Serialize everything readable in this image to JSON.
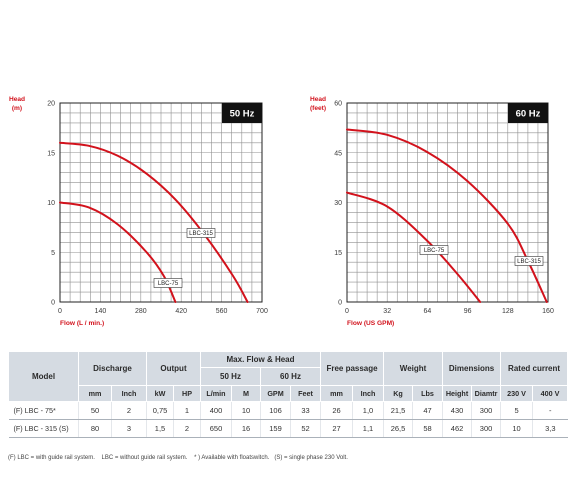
{
  "colors": {
    "curve": "#d2121c",
    "axis_title": "#d2121c",
    "badge_bg": "#111111",
    "header_bg": "#d5dbe2"
  },
  "chart_data": [
    {
      "type": "line",
      "badge": "50 Hz",
      "xlabel": "Flow (L / min.)",
      "ylabel": [
        "Head",
        "(m)"
      ],
      "xlim": [
        0,
        700
      ],
      "ylim": [
        0,
        20
      ],
      "xticks": [
        0,
        140,
        280,
        420,
        560,
        700
      ],
      "yticks": [
        0,
        5,
        10,
        15,
        20
      ],
      "grid": true,
      "xgrid_step": 35,
      "ygrid_step": 1,
      "series": [
        {
          "name": "LBC-315",
          "x": [
            0,
            100,
            200,
            300,
            400,
            500,
            600,
            650
          ],
          "y": [
            16,
            15.7,
            14.7,
            12.9,
            10.3,
            6.8,
            2.6,
            0
          ]
        },
        {
          "name": "LBC-75",
          "x": [
            0,
            100,
            200,
            300,
            360,
            400
          ],
          "y": [
            10,
            9.5,
            7.8,
            5.0,
            2.6,
            0
          ]
        }
      ]
    },
    {
      "type": "line",
      "badge": "60 Hz",
      "xlabel": "Flow (US GPM)",
      "ylabel": [
        "Head",
        "(feet)"
      ],
      "xlim": [
        0,
        160
      ],
      "ylim": [
        0,
        60
      ],
      "xticks": [
        0,
        32,
        64,
        96,
        128,
        160
      ],
      "yticks": [
        0,
        15,
        30,
        45,
        60
      ],
      "grid": true,
      "xgrid_step": 8,
      "ygrid_step": 3,
      "series": [
        {
          "name": "LBC-315",
          "x": [
            0,
            32,
            64,
            96,
            128,
            144,
            159
          ],
          "y": [
            52,
            50.4,
            45.2,
            36.4,
            23.6,
            12.4,
            0
          ]
        },
        {
          "name": "LBC-75",
          "x": [
            0,
            32,
            64,
            88,
            106
          ],
          "y": [
            33,
            28.8,
            18.4,
            8.4,
            0
          ]
        }
      ]
    }
  ],
  "table": {
    "headers": {
      "model": "Model",
      "discharge": "Discharge",
      "output": "Output",
      "max_flow_head": "Max. Flow & Head",
      "hz50": "50 Hz",
      "hz60": "60 Hz",
      "free_passage": "Free passage",
      "weight": "Weight",
      "dimensions": "Dimensions",
      "rated_current": "Rated current"
    },
    "units": [
      "mm",
      "Inch",
      "kW",
      "HP",
      "L/min",
      "M",
      "GPM",
      "Feet",
      "mm",
      "Inch",
      "Kg",
      "Lbs",
      "Height",
      "Diamtr",
      "230 V",
      "400 V"
    ],
    "rows": [
      {
        "model": "(F) LBC - 75*",
        "values": [
          "50",
          "2",
          "0,75",
          "1",
          "400",
          "10",
          "106",
          "33",
          "26",
          "1,0",
          "21,5",
          "47",
          "430",
          "300",
          "5",
          "-"
        ]
      },
      {
        "model": "(F) LBC - 315 (S)",
        "values": [
          "80",
          "3",
          "1,5",
          "2",
          "650",
          "16",
          "159",
          "52",
          "27",
          "1,1",
          "26,5",
          "58",
          "462",
          "300",
          "10",
          "3,3"
        ]
      }
    ]
  },
  "footnote": "(F) LBC = with guide rail system.    LBC = without guide rail system.    * ) Available with floatswitch.   (S) = single phase 230 Volt."
}
